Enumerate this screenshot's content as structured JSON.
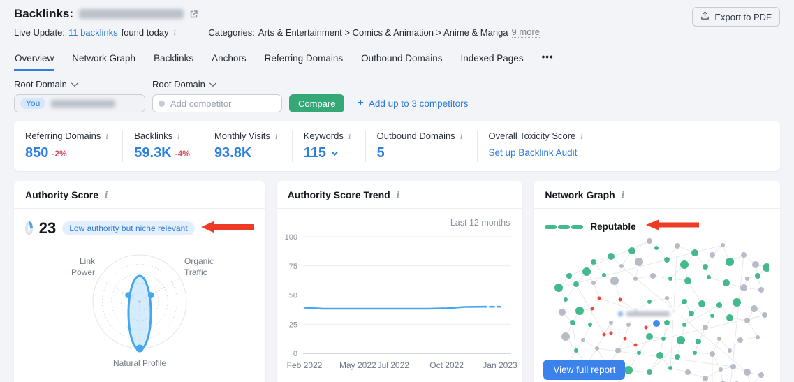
{
  "colors": {
    "accent_blue": "#2e7fe0",
    "link_blue": "#2d7cd8",
    "green": "#35a878",
    "node_green": "#43ba8b",
    "node_gray": "#b7bbc5",
    "node_red": "#f0443b",
    "node_root": "#3a8cf0",
    "arrow_red": "#ee3b25",
    "line_blue": "#45a7ef",
    "delta_red": "#d35064"
  },
  "icons": {
    "info": "i",
    "more_tab": "•••"
  },
  "header": {
    "title": "Backlinks:",
    "export_button": "Export to PDF",
    "live_update_label": "Live Update:",
    "live_update_link": "11 backlinks",
    "live_update_suffix": "found today",
    "categories_label": "Categories:",
    "categories_path": "Arts & Entertainment > Comics & Animation > Anime & Manga",
    "categories_more": "9 more"
  },
  "tabs": {
    "items": [
      "Overview",
      "Network Graph",
      "Backlinks",
      "Anchors",
      "Referring Domains",
      "Outbound Domains",
      "Indexed Pages"
    ],
    "active": "Overview"
  },
  "filters": {
    "root_domain_label_you": "Root Domain",
    "root_domain_label_competitor": "Root Domain",
    "you_chip": "You",
    "competitor_placeholder": "Add competitor",
    "compare_button": "Compare",
    "add_competitors_plus": "+",
    "add_competitors_link": "Add up to 3 competitors"
  },
  "metrics": {
    "items": [
      {
        "label": "Referring Domains",
        "value": "850",
        "delta": "-2%"
      },
      {
        "label": "Backlinks",
        "value": "59.3K",
        "delta": "-4%"
      },
      {
        "label": "Monthly Visits",
        "value": "93.8K"
      },
      {
        "label": "Keywords",
        "value": "115"
      },
      {
        "label": "Outbound Domains",
        "value": "5"
      }
    ],
    "toxicity_label": "Overall Toxicity Score",
    "toxicity_link": "Set up Backlink Audit"
  },
  "cards": {
    "authority_score": {
      "title": "Authority Score",
      "score": "23",
      "badge": "Low authority but niche relevant"
    },
    "trend": {
      "title": "Authority Score Trend",
      "range_label": "Last 12 months"
    },
    "network": {
      "title": "Network Graph",
      "rating": "Reputable",
      "segments": 3,
      "button_label": "View full report"
    }
  },
  "chart_data": [
    {
      "id": "authority-profile",
      "type": "radar",
      "axes": [
        "Link Power",
        "Organic Traffic",
        "Natural Profile"
      ],
      "values": [
        28,
        28,
        100
      ],
      "max": 100,
      "rings": 4
    },
    {
      "id": "authority-trend",
      "type": "line",
      "title": "Authority Score Trend",
      "range_label": "Last 12 months",
      "x": [
        "Feb 2022",
        "Mar 2022",
        "Apr 2022",
        "May 2022",
        "Jun 2022",
        "Jul 2022",
        "Aug 2022",
        "Sep 2022",
        "Oct 2022",
        "Nov 2022",
        "Dec 2022",
        "Jan 2023"
      ],
      "values": [
        39.2,
        38.4,
        38.3,
        38.3,
        38.3,
        38.3,
        38.3,
        38.3,
        38.7,
        39.8,
        40,
        40
      ],
      "dashed_from_index": 10,
      "ylim": [
        0,
        100
      ],
      "yticks": [
        0,
        25,
        50,
        75,
        100
      ],
      "x_tick_labels": [
        "Feb 2022",
        "May 2022",
        "Jul 2022",
        "Oct 2022",
        "Jan 2023"
      ],
      "x_tick_index": [
        0,
        3,
        5,
        8,
        11
      ],
      "grid": true,
      "legend": "none"
    },
    {
      "id": "network-graph",
      "type": "network",
      "rating": "Reputable",
      "legend": {
        "green": "reputable domain",
        "gray": "neutral domain",
        "red": "toxic domain",
        "blue": "root domain"
      },
      "nodes": [
        [
          150,
          8,
          4,
          "n"
        ],
        [
          125,
          22,
          5,
          "g"
        ],
        [
          160,
          18,
          3,
          "g"
        ],
        [
          190,
          15,
          4,
          "n"
        ],
        [
          215,
          25,
          5,
          "g"
        ],
        [
          240,
          28,
          4,
          "n"
        ],
        [
          255,
          14,
          3,
          "n"
        ],
        [
          95,
          30,
          5,
          "g"
        ],
        [
          70,
          38,
          4,
          "g"
        ],
        [
          110,
          44,
          3,
          "n"
        ],
        [
          135,
          38,
          6,
          "n"
        ],
        [
          175,
          35,
          4,
          "g"
        ],
        [
          200,
          42,
          6,
          "g"
        ],
        [
          230,
          45,
          4,
          "g"
        ],
        [
          265,
          38,
          6,
          "g"
        ],
        [
          285,
          28,
          4,
          "n"
        ],
        [
          302,
          42,
          5,
          "n"
        ],
        [
          35,
          58,
          4,
          "g"
        ],
        [
          60,
          52,
          6,
          "g"
        ],
        [
          85,
          57,
          3,
          "g"
        ],
        [
          305,
          58,
          4,
          "g"
        ],
        [
          318,
          46,
          6,
          "g"
        ],
        [
          290,
          62,
          3,
          "n"
        ],
        [
          20,
          75,
          6,
          "g"
        ],
        [
          45,
          70,
          4,
          "g"
        ],
        [
          70,
          68,
          3,
          "n"
        ],
        [
          100,
          65,
          6,
          "n"
        ],
        [
          130,
          62,
          3,
          "n"
        ],
        [
          155,
          58,
          4,
          "n"
        ],
        [
          180,
          62,
          3,
          "g"
        ],
        [
          205,
          65,
          5,
          "g"
        ],
        [
          235,
          60,
          3,
          "g"
        ],
        [
          260,
          68,
          5,
          "g"
        ],
        [
          285,
          75,
          5,
          "n"
        ],
        [
          310,
          78,
          4,
          "n"
        ],
        [
          30,
          92,
          3,
          "g"
        ],
        [
          78,
          90,
          2.5,
          "r"
        ],
        [
          108,
          92,
          2.5,
          "r"
        ],
        [
          68,
          105,
          2.5,
          "r"
        ],
        [
          95,
          140,
          2.5,
          "r"
        ],
        [
          115,
          148,
          2.5,
          "r"
        ],
        [
          85,
          142,
          2.5,
          "r"
        ],
        [
          130,
          157,
          2.5,
          "r"
        ],
        [
          145,
          132,
          2.5,
          "r"
        ],
        [
          150,
          95,
          3,
          "g"
        ],
        [
          175,
          90,
          3,
          "n"
        ],
        [
          200,
          95,
          4,
          "g"
        ],
        [
          225,
          98,
          5,
          "g"
        ],
        [
          250,
          100,
          4,
          "g"
        ],
        [
          275,
          96,
          6,
          "g"
        ],
        [
          300,
          105,
          5,
          "n"
        ],
        [
          25,
          110,
          5,
          "n"
        ],
        [
          50,
          108,
          6,
          "g"
        ],
        [
          130,
          108,
          4,
          "g"
        ],
        [
          185,
          108,
          3,
          "n"
        ],
        [
          210,
          112,
          4,
          "g"
        ],
        [
          240,
          115,
          3,
          "g"
        ],
        [
          265,
          118,
          5,
          "g"
        ],
        [
          290,
          122,
          4,
          "n"
        ],
        [
          315,
          114,
          4,
          "n"
        ],
        [
          40,
          125,
          4,
          "g"
        ],
        [
          65,
          128,
          3,
          "g"
        ],
        [
          95,
          125,
          3,
          "n"
        ],
        [
          120,
          128,
          3,
          "n"
        ],
        [
          175,
          125,
          4,
          "g"
        ],
        [
          200,
          128,
          3,
          "g"
        ],
        [
          230,
          132,
          4,
          "n"
        ],
        [
          160,
          126,
          5,
          "b"
        ],
        [
          30,
          145,
          6,
          "n"
        ],
        [
          55,
          150,
          3,
          "n"
        ],
        [
          150,
          145,
          5,
          "g"
        ],
        [
          170,
          148,
          3,
          "g"
        ],
        [
          195,
          150,
          6,
          "g"
        ],
        [
          220,
          152,
          4,
          "g"
        ],
        [
          250,
          148,
          3,
          "n"
        ],
        [
          280,
          150,
          4,
          "n"
        ],
        [
          305,
          146,
          3,
          "n"
        ],
        [
          45,
          165,
          3,
          "g"
        ],
        [
          75,
          162,
          3,
          "n"
        ],
        [
          105,
          165,
          4,
          "n"
        ],
        [
          135,
          168,
          3,
          "g"
        ],
        [
          165,
          172,
          5,
          "g"
        ],
        [
          190,
          174,
          4,
          "g"
        ],
        [
          215,
          168,
          3,
          "g"
        ],
        [
          240,
          170,
          4,
          "n"
        ],
        [
          265,
          165,
          3,
          "n"
        ],
        [
          60,
          185,
          3,
          "g"
        ],
        [
          90,
          188,
          4,
          "g"
        ],
        [
          120,
          193,
          6,
          "g"
        ],
        [
          150,
          196,
          4,
          "g"
        ],
        [
          180,
          190,
          3,
          "g"
        ],
        [
          205,
          196,
          4,
          "n"
        ],
        [
          25,
          196,
          4,
          "n"
        ],
        [
          230,
          205,
          4,
          "n"
        ],
        [
          252,
          192,
          3,
          "n"
        ],
        [
          270,
          188,
          4,
          "n"
        ],
        [
          290,
          196,
          5,
          "n"
        ],
        [
          310,
          200,
          4,
          "n"
        ],
        [
          255,
          211,
          3,
          "n"
        ],
        [
          275,
          213,
          4,
          "n"
        ],
        [
          295,
          216,
          5,
          "n"
        ],
        [
          240,
          219,
          3,
          "n"
        ],
        [
          265,
          224,
          3,
          "n"
        ],
        [
          285,
          226,
          3,
          "n"
        ]
      ]
    }
  ]
}
